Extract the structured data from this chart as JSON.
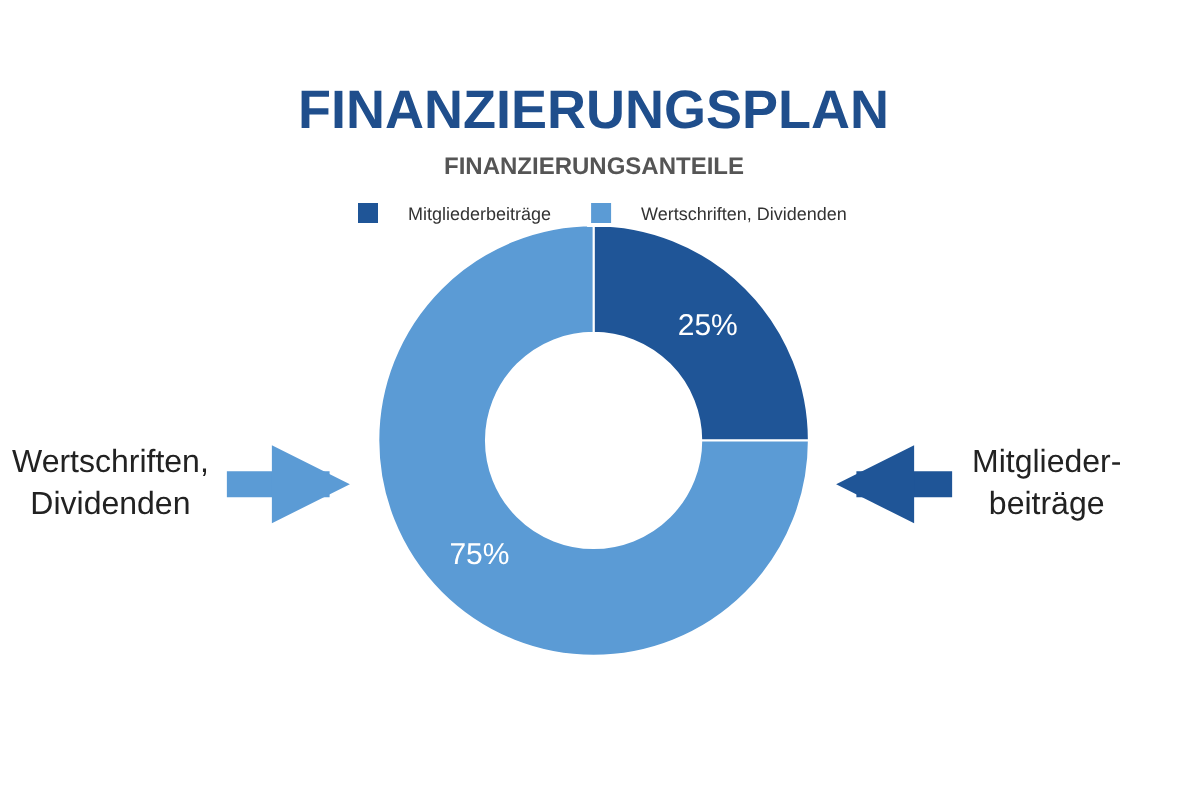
{
  "chart_data": {
    "type": "donut",
    "title": "FINANZIERUNGSPLAN",
    "subtitle": "FINANZIERUNGSANTEILE",
    "categories": [
      "Mitgliederbeiträge",
      "Wertschriften, Dividenden"
    ],
    "values": [
      25,
      75
    ],
    "value_labels": [
      "25%",
      "75%"
    ],
    "colors": [
      "#1f5597",
      "#5b9bd5"
    ],
    "legend": "top",
    "annotations": [
      "Wertschriften,\nDividenden",
      "Mitglieder-\nbeiträge"
    ]
  }
}
